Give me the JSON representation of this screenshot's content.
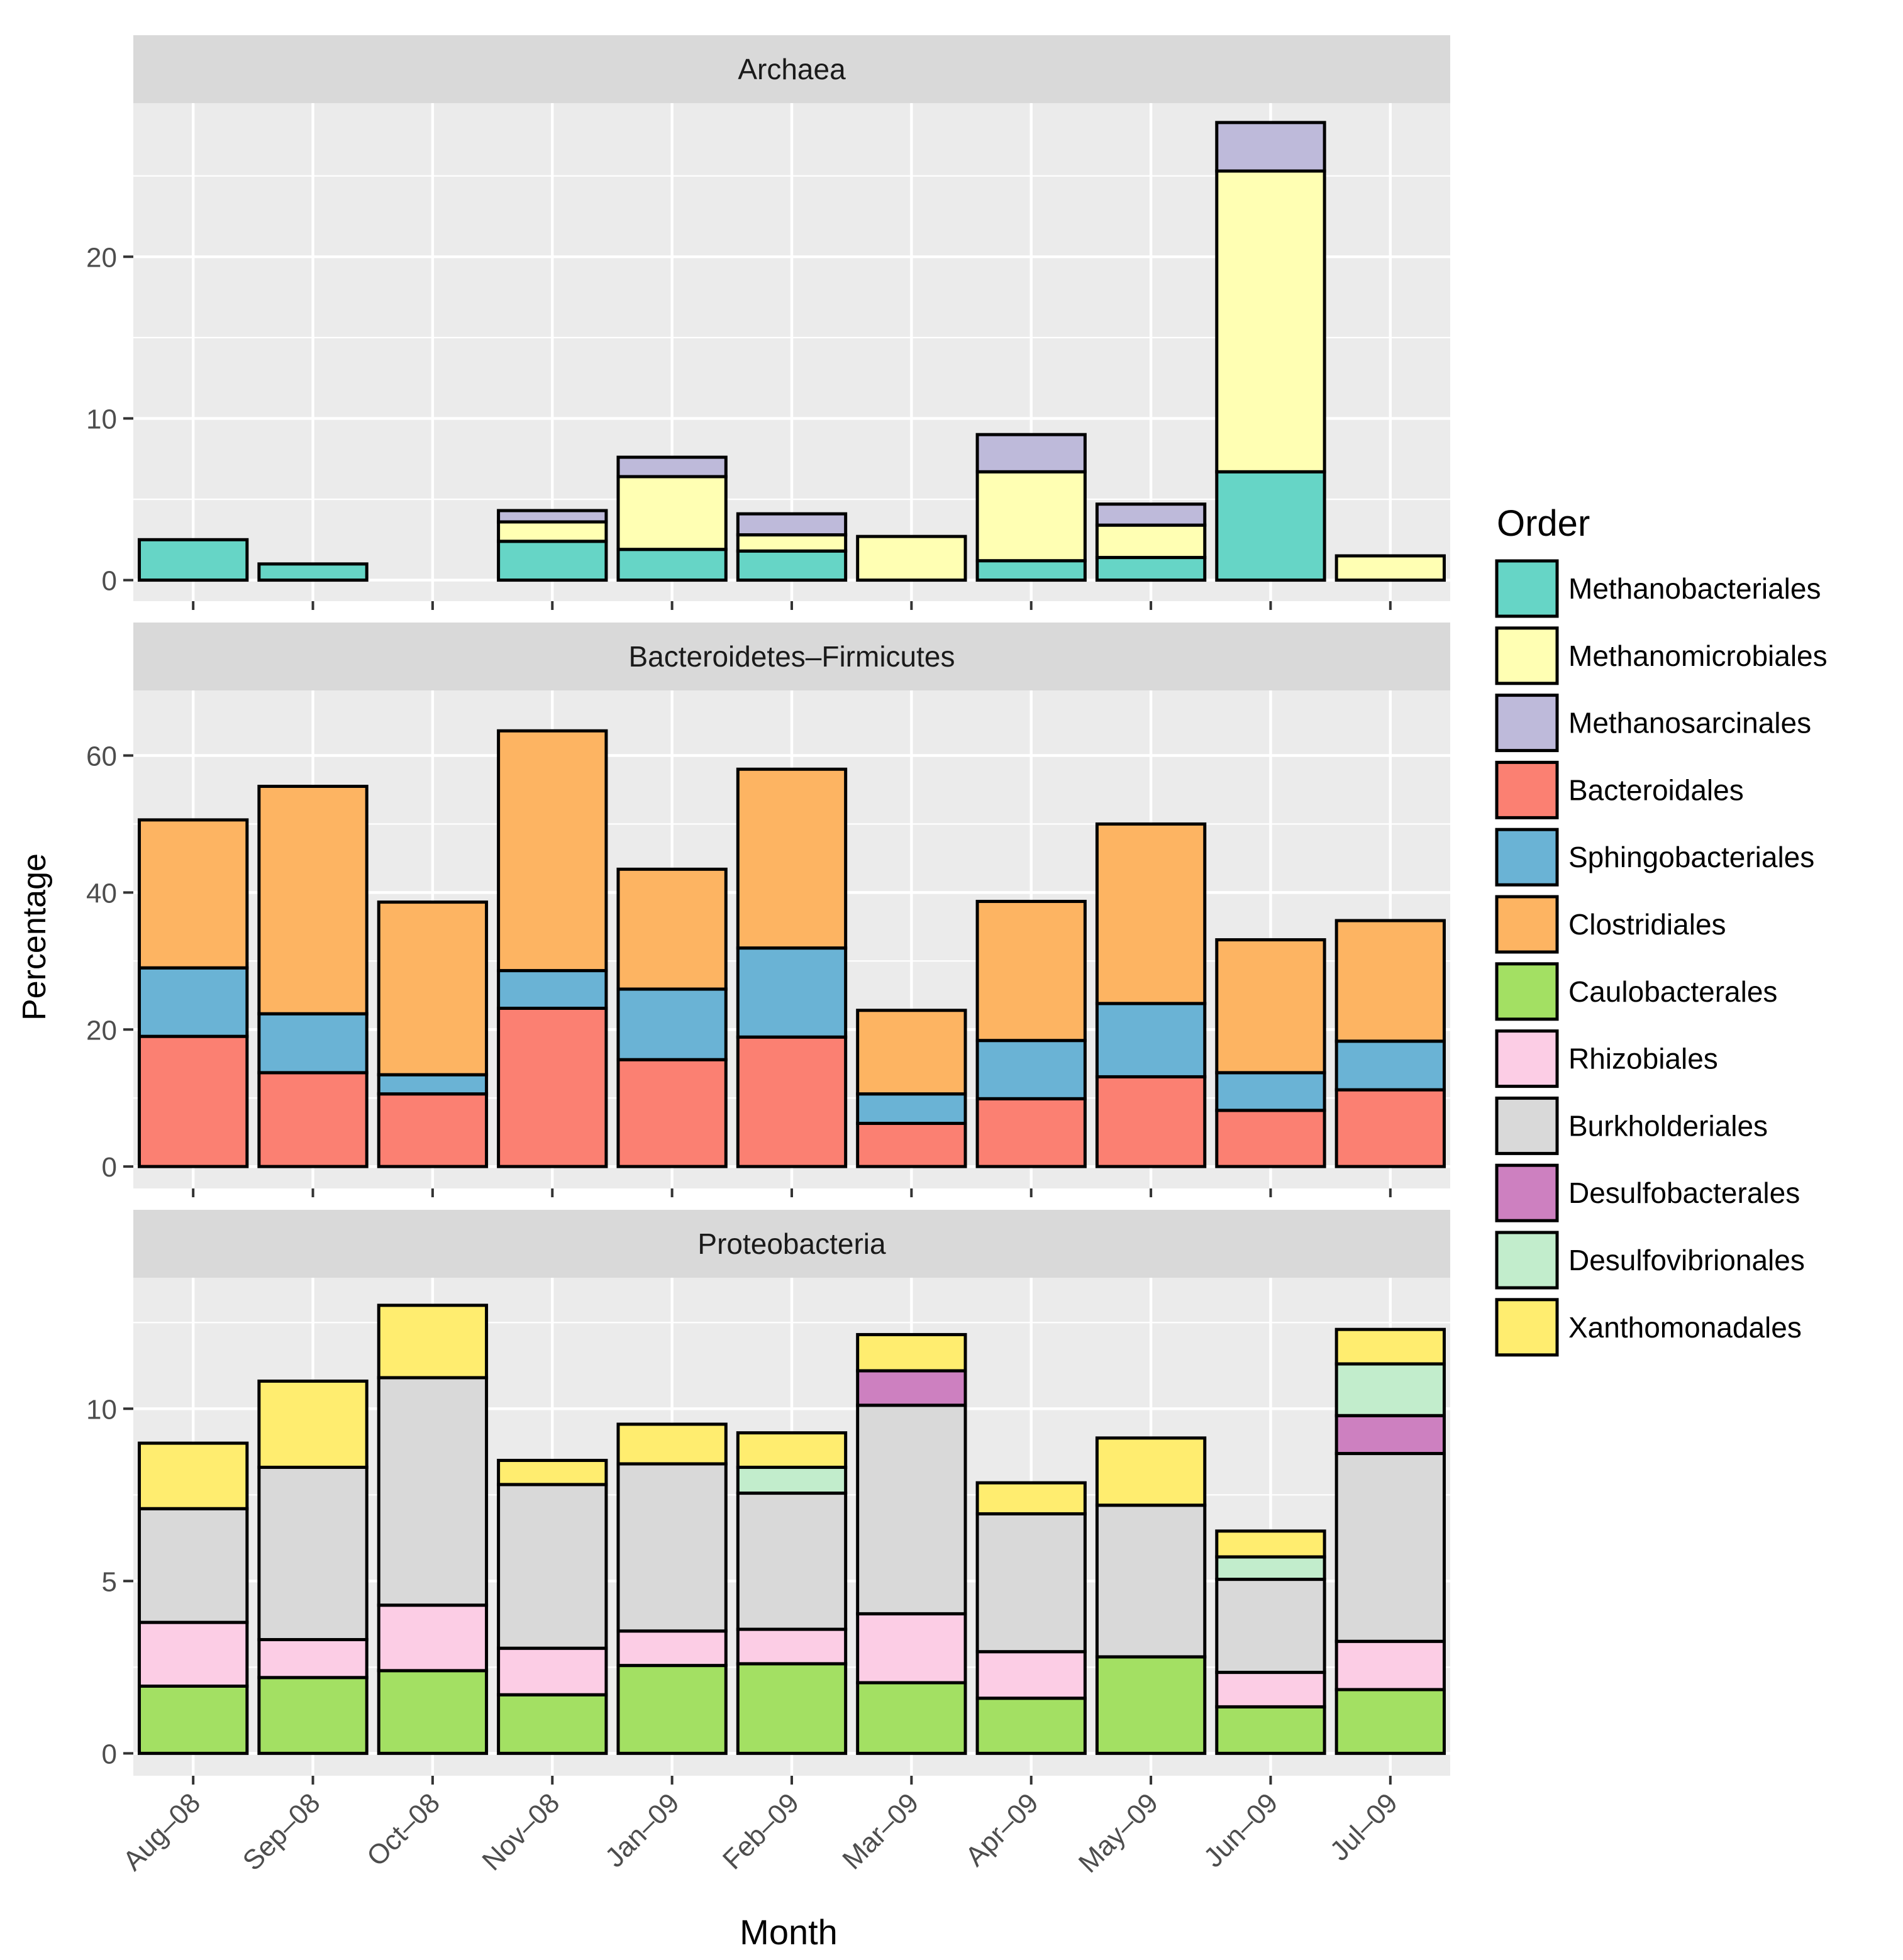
{
  "chart_data": {
    "type": "bar",
    "stacked": true,
    "facet": "vertical",
    "xlabel": "Month",
    "ylabel": "Percentage",
    "categories": [
      "Aug–08",
      "Sep–08",
      "Oct–08",
      "Nov–08",
      "Jan–09",
      "Feb–09",
      "Mar–09",
      "Apr–09",
      "May–09",
      "Jun–09",
      "Jul–09"
    ],
    "legend": {
      "title": "Order",
      "position": "right",
      "items": [
        {
          "name": "Methanobacteriales",
          "color": "#66d5c6"
        },
        {
          "name": "Methanomicrobiales",
          "color": "#ffffb3"
        },
        {
          "name": "Methanosarcinales",
          "color": "#bebada"
        },
        {
          "name": "Bacteroidales",
          "color": "#fb8072"
        },
        {
          "name": "Sphingobacteriales",
          "color": "#6ab3d5"
        },
        {
          "name": "Clostridiales",
          "color": "#fdb462"
        },
        {
          "name": "Caulobacterales",
          "color": "#a3e063"
        },
        {
          "name": "Rhizobiales",
          "color": "#fccde5"
        },
        {
          "name": "Burkholderiales",
          "color": "#d9d9d9"
        },
        {
          "name": "Desulfobacterales",
          "color": "#cd80c0"
        },
        {
          "name": "Desulfovibrionales",
          "color": "#c2edcc"
        },
        {
          "name": "Xanthomonadales",
          "color": "#ffed6f"
        }
      ]
    },
    "panels": [
      {
        "title": "Archaea",
        "ylim": [
          -1.3,
          29.5
        ],
        "ticks": [
          0,
          10,
          20
        ],
        "tick_labels": [
          "0",
          "10",
          "20"
        ],
        "series": [
          {
            "name": "Methanobacteriales",
            "values": [
              2.5,
              1.0,
              0.0,
              2.4,
              1.9,
              1.8,
              0.0,
              1.2,
              1.4,
              6.7,
              0.0
            ]
          },
          {
            "name": "Methanomicrobiales",
            "values": [
              0.0,
              0.0,
              0.0,
              1.2,
              4.5,
              1.0,
              2.7,
              5.5,
              2.0,
              18.6,
              1.5
            ]
          },
          {
            "name": "Methanosarcinales",
            "values": [
              0.0,
              0.0,
              0.0,
              0.7,
              1.2,
              1.3,
              0.0,
              2.3,
              1.3,
              3.0,
              0.0
            ]
          }
        ]
      },
      {
        "title": "Bacteroidetes–Firmicutes",
        "ylim": [
          -3.2,
          69.5
        ],
        "ticks": [
          0,
          20,
          40,
          60
        ],
        "tick_labels": [
          "0",
          "20",
          "40",
          "60"
        ],
        "series": [
          {
            "name": "Bacteroidales",
            "values": [
              19.0,
              13.7,
              10.6,
              23.1,
              15.6,
              18.9,
              6.3,
              9.9,
              13.1,
              8.2,
              11.2
            ]
          },
          {
            "name": "Sphingobacteriales",
            "values": [
              10.0,
              8.6,
              2.8,
              5.5,
              10.3,
              13.0,
              4.3,
              8.5,
              10.7,
              5.5,
              7.1
            ]
          },
          {
            "name": "Clostridiales",
            "values": [
              21.6,
              33.2,
              25.2,
              35.0,
              17.5,
              26.1,
              12.2,
              20.3,
              26.2,
              19.4,
              17.6
            ]
          }
        ]
      },
      {
        "title": "Proteobacteria",
        "ylim": [
          -0.65,
          13.8
        ],
        "ticks": [
          0,
          5,
          10
        ],
        "tick_labels": [
          "0",
          "5",
          "10"
        ],
        "series": [
          {
            "name": "Caulobacterales",
            "values": [
              1.95,
              2.2,
              2.4,
              1.7,
              2.55,
              2.6,
              2.05,
              1.6,
              2.8,
              1.35,
              1.85
            ]
          },
          {
            "name": "Rhizobiales",
            "values": [
              1.85,
              1.1,
              1.9,
              1.35,
              1.0,
              1.0,
              2.0,
              1.35,
              0.0,
              1.0,
              1.4
            ]
          },
          {
            "name": "Burkholderiales",
            "values": [
              3.3,
              5.0,
              6.6,
              4.75,
              4.85,
              3.95,
              6.05,
              4.0,
              4.4,
              2.7,
              5.45
            ]
          },
          {
            "name": "Desulfobacterales",
            "values": [
              0.0,
              0.0,
              0.0,
              0.0,
              0.0,
              0.0,
              1.0,
              0.0,
              0.0,
              0.0,
              1.1
            ]
          },
          {
            "name": "Desulfovibrionales",
            "values": [
              0.0,
              0.0,
              0.0,
              0.0,
              0.0,
              0.75,
              0.0,
              0.0,
              0.0,
              0.65,
              1.5
            ]
          },
          {
            "name": "Xanthomonadales",
            "values": [
              1.9,
              2.5,
              2.1,
              0.7,
              1.15,
              1.0,
              1.05,
              0.9,
              1.95,
              0.75,
              1.0
            ]
          }
        ]
      }
    ]
  }
}
